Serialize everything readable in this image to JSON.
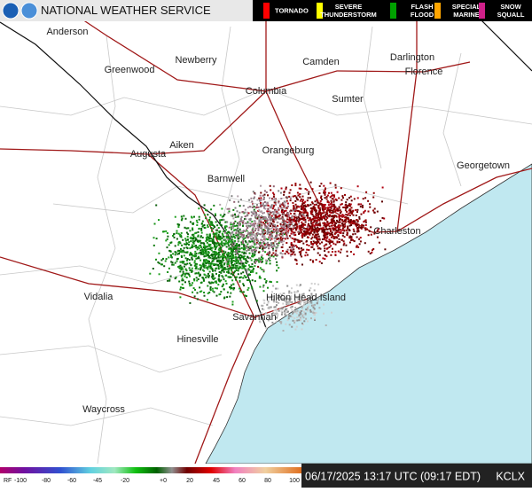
{
  "header": {
    "title": "NATIONAL WEATHER SERVICE"
  },
  "warning_legend": [
    {
      "lines": [
        "TORNADO"
      ],
      "color": "#ff0000"
    },
    {
      "lines": [
        "SEVERE",
        "THUNDERSTORM"
      ],
      "color": "#ffff00"
    },
    {
      "lines": [
        "FLASH",
        "FLOOD"
      ],
      "color": "#00a000"
    },
    {
      "lines": [
        "SPECIAL",
        "MARINE"
      ],
      "color": "#ffa500"
    },
    {
      "lines": [
        "SNOW",
        "SQUALL"
      ],
      "color": "#d0208a"
    }
  ],
  "cities": [
    "Anderson",
    "Greenwood",
    "Newberry",
    "Camden",
    "Darlington",
    "Florence",
    "Columbia",
    "Sumter",
    "Aiken",
    "Augusta",
    "Orangeburg",
    "Georgetown",
    "Barnwell",
    "Charleston",
    "Hilton Head Island",
    "Vidalia",
    "Savannah",
    "Hinesville",
    "Waycross"
  ],
  "color_scale": {
    "labels": [
      "RF",
      "-100",
      "-80",
      "-60",
      "-45",
      "-20",
      "+0",
      "20",
      "45",
      "60",
      "80",
      "100"
    ]
  },
  "status": {
    "timestamp": "06/17/2025 13:17 UTC (09:17 EDT)",
    "radar": "KCLX"
  }
}
